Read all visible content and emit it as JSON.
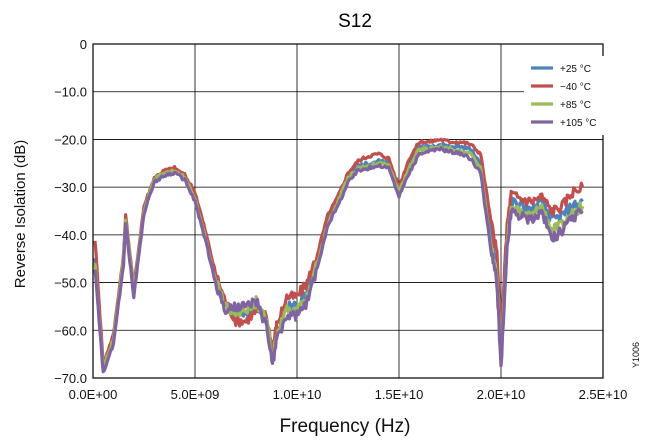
{
  "chart_data": {
    "type": "line",
    "title": "S12",
    "xlabel": "Frequency (Hz)",
    "ylabel": "Reverse Isolation (dB)",
    "xlim": [
      0,
      25000000000
    ],
    "ylim": [
      -70,
      0
    ],
    "x_ticks": [
      "0.0E+00",
      "5.0E+09",
      "1.0E+10",
      "1.5E+10",
      "2.0E+10",
      "2.5E+10"
    ],
    "y_ticks": [
      "0",
      "−10.0",
      "−20.0",
      "−30.0",
      "−40.0",
      "−50.0",
      "−60.0",
      "−70.0"
    ],
    "grid": true,
    "legend_position": "top-right",
    "figure_code": "Y1006",
    "x": [
      100000000,
      500000000,
      1000000000,
      1500000000,
      1600000000,
      2000000000,
      2500000000,
      3000000000,
      3500000000,
      4000000000,
      4500000000,
      5000000000,
      5500000000,
      6000000000,
      6500000000,
      7000000000,
      7500000000,
      8000000000,
      8500000000,
      8800000000,
      9000000000,
      9500000000,
      10000000000,
      10500000000,
      11000000000,
      11500000000,
      12000000000,
      12500000000,
      13000000000,
      13500000000,
      14000000000,
      14500000000,
      15000000000,
      15500000000,
      16000000000,
      16500000000,
      17000000000,
      17500000000,
      18000000000,
      18500000000,
      19000000000,
      19500000000,
      19800000000,
      20000000000,
      20300000000,
      20500000000,
      21000000000,
      21500000000,
      22000000000,
      22500000000,
      23000000000,
      23500000000,
      24000000000
    ],
    "series": [
      {
        "name": "+25 °C",
        "color": "#4f81bd",
        "values": [
          -45,
          -68,
          -62,
          -45,
          -37,
          -52,
          -35,
          -28.5,
          -27,
          -26.5,
          -28,
          -32,
          -40,
          -49,
          -55,
          -57,
          -56,
          -55,
          -58,
          -65,
          -60,
          -55,
          -55,
          -52,
          -45,
          -37,
          -33,
          -28,
          -25.5,
          -25,
          -24.5,
          -25,
          -31,
          -25,
          -21.5,
          -21.5,
          -21,
          -21.5,
          -21.5,
          -22,
          -25,
          -40,
          -47,
          -63,
          -40,
          -33,
          -34,
          -35,
          -33,
          -37,
          -36,
          -34,
          -33
        ]
      },
      {
        "name": "−40 °C",
        "color": "#c0504d",
        "values": [
          -41,
          -67,
          -61,
          -44,
          -36,
          -51,
          -34,
          -28,
          -26.5,
          -26,
          -27.5,
          -31,
          -39,
          -48,
          -54,
          -58,
          -58,
          -56,
          -57,
          -64,
          -59,
          -53,
          -53,
          -50,
          -44,
          -36,
          -32,
          -27,
          -24.5,
          -23.5,
          -23,
          -24,
          -30,
          -24,
          -20.5,
          -20.5,
          -20,
          -20.5,
          -20.5,
          -21,
          -23,
          -37,
          -44,
          -61,
          -38,
          -31.5,
          -32.5,
          -33,
          -32,
          -35,
          -34,
          -31,
          -30
        ]
      },
      {
        "name": "+85 °C",
        "color": "#9bbb59",
        "values": [
          -46,
          -68,
          -62,
          -45,
          -37,
          -52,
          -35,
          -28.5,
          -27,
          -26.5,
          -28,
          -32.5,
          -40.5,
          -49.5,
          -55,
          -56,
          -56,
          -54,
          -58,
          -66,
          -61,
          -56,
          -56,
          -53,
          -46,
          -38,
          -33,
          -28,
          -26,
          -25.5,
          -25,
          -25.5,
          -31,
          -26,
          -22,
          -22,
          -21.5,
          -22,
          -22.5,
          -23,
          -26,
          -42,
          -49,
          -66,
          -42,
          -34.5,
          -35.5,
          -36,
          -34,
          -39,
          -38,
          -35.5,
          -34
        ]
      },
      {
        "name": "+105 °C",
        "color": "#8064a2",
        "values": [
          -47,
          -69,
          -63,
          -46,
          -37.5,
          -53,
          -35.5,
          -29,
          -27.5,
          -27,
          -28.5,
          -33,
          -41,
          -50,
          -56,
          -55,
          -55,
          -54,
          -59,
          -67,
          -62,
          -57,
          -57,
          -54,
          -47,
          -38,
          -34,
          -29,
          -26.5,
          -26,
          -25.5,
          -26,
          -32,
          -27,
          -23,
          -22.5,
          -22,
          -22.5,
          -23,
          -24,
          -27,
          -43,
          -50,
          -68,
          -43,
          -35,
          -36,
          -37,
          -35,
          -41,
          -39,
          -36.5,
          -35
        ]
      }
    ]
  }
}
